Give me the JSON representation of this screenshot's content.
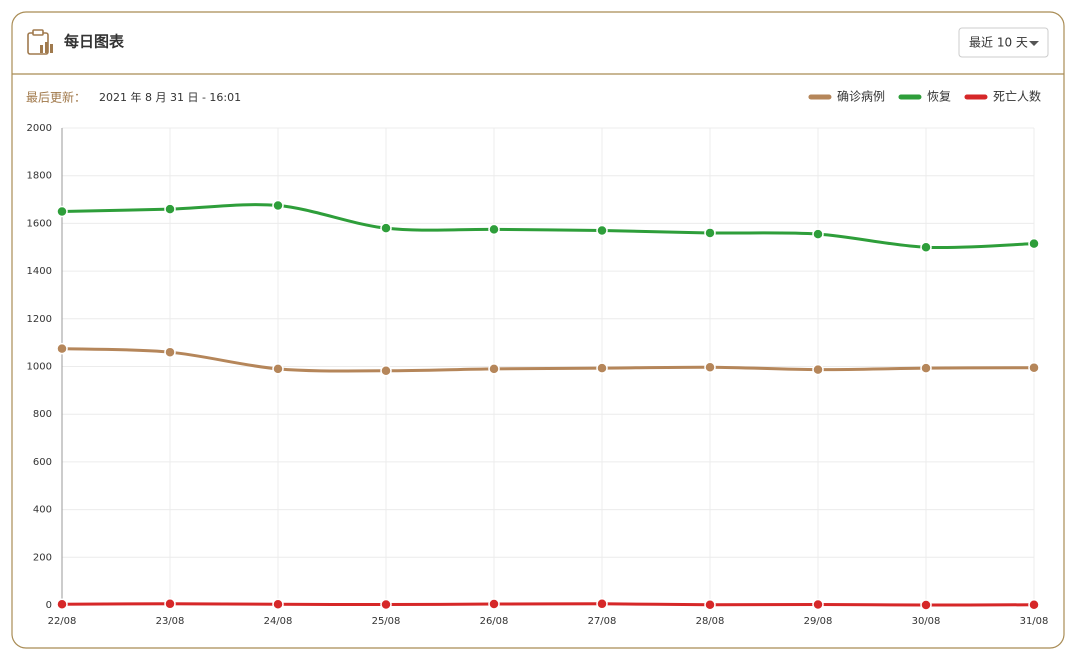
{
  "header": {
    "title": "每日图表",
    "dropdown": "最近 10 天"
  },
  "update": {
    "label": "最后更新：",
    "value": "2021 年 8 月 31 日 - 16:01"
  },
  "chart_data": {
    "type": "line",
    "categories": [
      "22/08",
      "23/08",
      "24/08",
      "25/08",
      "26/08",
      "27/08",
      "28/08",
      "29/08",
      "30/08",
      "31/08"
    ],
    "series": [
      {
        "name": "确诊病例",
        "color": "#b5865a",
        "values": [
          1075,
          1060,
          990,
          982,
          990,
          993,
          997,
          987,
          993,
          995
        ]
      },
      {
        "name": "恢复",
        "color": "#2e9e3a",
        "values": [
          1650,
          1660,
          1675,
          1580,
          1575,
          1570,
          1560,
          1555,
          1500,
          1515
        ]
      },
      {
        "name": "死亡人数",
        "color": "#d62728",
        "values": [
          3,
          5,
          3,
          2,
          4,
          5,
          1,
          2,
          0,
          1
        ]
      }
    ],
    "ylim": [
      0,
      2000
    ],
    "yticks": [
      0,
      200,
      400,
      600,
      800,
      1000,
      1200,
      1400,
      1600,
      1800,
      2000
    ],
    "grid": true,
    "legend": "top-right"
  }
}
